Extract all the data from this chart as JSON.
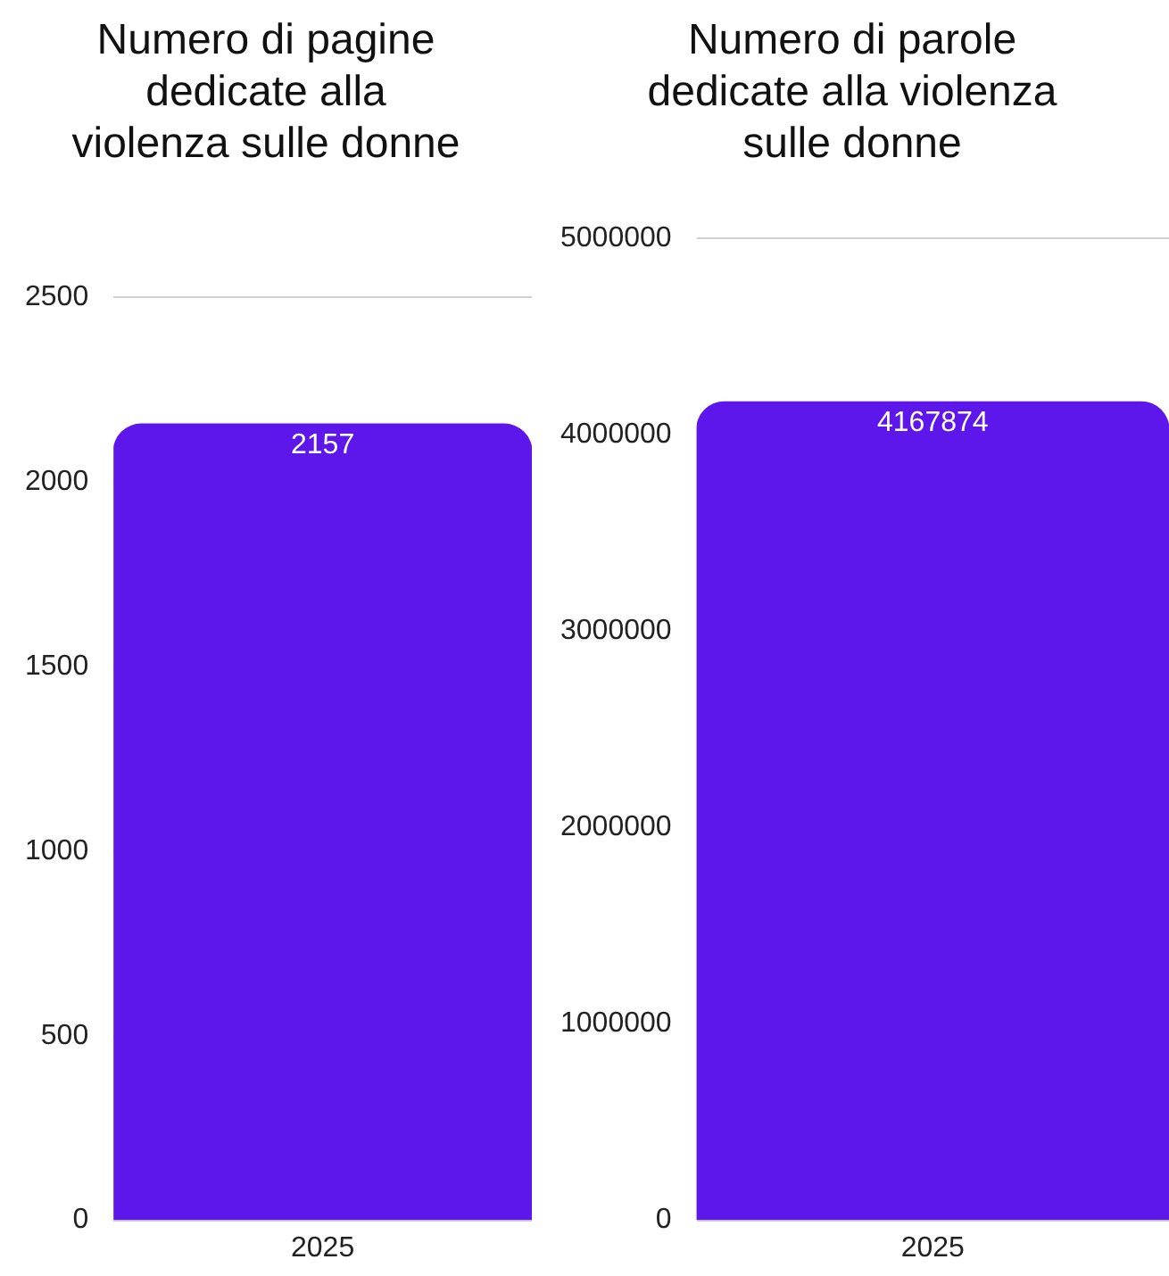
{
  "chart_data": [
    {
      "type": "bar",
      "title": "Numero di pagine dedicate alla violenza sulle donne",
      "categories": [
        "2025"
      ],
      "values": [
        2157
      ],
      "color": "#5e17eb",
      "ylim": [
        0,
        2500
      ],
      "yticks": [
        0,
        500,
        1000,
        1500,
        2000,
        2500
      ],
      "grid": "y",
      "data_labels": true
    },
    {
      "type": "bar",
      "title": "Numero di parole dedicate alla violenza sulle donne",
      "categories": [
        "2025"
      ],
      "values": [
        4167874
      ],
      "color": "#5e17eb",
      "ylim": [
        0,
        5000000
      ],
      "yticks": [
        0,
        1000000,
        2000000,
        3000000,
        4000000,
        5000000
      ],
      "grid": "y",
      "data_labels": true
    }
  ]
}
